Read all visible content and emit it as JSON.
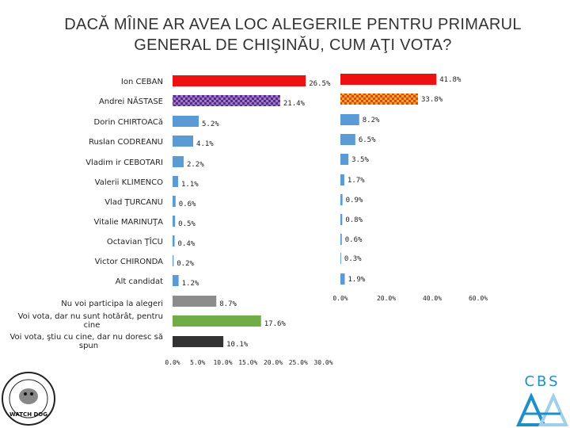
{
  "title_line1": "DACĂ MÎINE AR AVEA LOC ALEGERILE PENTRU PRIMARUL",
  "title_line2": "GENERAL DE CHIŞINĂU, CUM AŢI VOTA?",
  "logos": {
    "left": "WATCH DOG",
    "right": "CBS",
    "right_colors": [
      "#1f8fc7",
      "#9fd0ea"
    ]
  },
  "chart_data": [
    {
      "type": "bar",
      "orientation": "horizontal",
      "categories": [
        "Ion CEBAN",
        "Andrei NĂSTASE",
        "Dorin CHIRTOACă",
        "Ruslan CODREANU",
        "Vladim ir CEBOTARI",
        "Valerii KLIMENCO",
        "Vlad ŢURCANU",
        "Vitalie MARINUŢA",
        "Octavian ŢÎCU",
        "Victor CHIRONDA",
        "Alt candidat",
        "Nu voi participa la alegeri",
        "Voi vota, dar nu sunt hotărât, pentru cine",
        "Voi vota, ştiu cu cine, dar nu doresc să spun"
      ],
      "values": [
        26.5,
        21.4,
        5.2,
        4.1,
        2.2,
        1.1,
        0.6,
        0.5,
        0.4,
        0.2,
        1.2,
        8.7,
        17.6,
        10.1
      ],
      "value_labels": [
        "26.5%",
        "21.4%",
        "5.2%",
        "4.1%",
        "2.2%",
        "1.1%",
        "0.6%",
        "0.5%",
        "0.4%",
        "0.2%",
        "1.2%",
        "8.7%",
        "17.6%",
        "10.1%"
      ],
      "colors": [
        "#ee1111",
        "#5a2a8a",
        "#5b9bd5",
        "#5b9bd5",
        "#5b9bd5",
        "#5b9bd5",
        "#5b9bd5",
        "#5b9bd5",
        "#5b9bd5",
        "#5b9bd5",
        "#5b9bd5",
        "#8c8c8c",
        "#70ad47",
        "#333333"
      ],
      "patterns": [
        "solid",
        "checker-purple",
        "solid",
        "solid",
        "solid",
        "solid",
        "solid",
        "solid",
        "solid",
        "solid",
        "solid",
        "solid",
        "solid",
        "solid"
      ],
      "xlim": [
        0,
        30
      ],
      "ticks": [
        "0.0%",
        "5.0%",
        "10.0%",
        "15.0%",
        "20.0%",
        "25.0%",
        "30.0%"
      ]
    },
    {
      "type": "bar",
      "orientation": "horizontal",
      "values": [
        41.8,
        33.8,
        8.2,
        6.5,
        3.5,
        1.7,
        0.9,
        0.8,
        0.6,
        0.3,
        1.9
      ],
      "value_labels": [
        "41.8%",
        "33.8%",
        "8.2%",
        "6.5%",
        "3.5%",
        "1.7%",
        "0.9%",
        "0.8%",
        "0.6%",
        "0.3%",
        "1.9%"
      ],
      "colors": [
        "#ee1111",
        "#f5a020",
        "#5b9bd5",
        "#5b9bd5",
        "#5b9bd5",
        "#5b9bd5",
        "#5b9bd5",
        "#5b9bd5",
        "#5b9bd5",
        "#5b9bd5",
        "#5b9bd5"
      ],
      "patterns": [
        "solid",
        "checker-orange",
        "solid",
        "solid",
        "solid",
        "solid",
        "solid",
        "solid",
        "solid",
        "solid",
        "solid"
      ],
      "xlim": [
        0,
        60
      ],
      "ticks": [
        "0.0%",
        "20.0%",
        "40.0%",
        "60.0%"
      ]
    }
  ]
}
